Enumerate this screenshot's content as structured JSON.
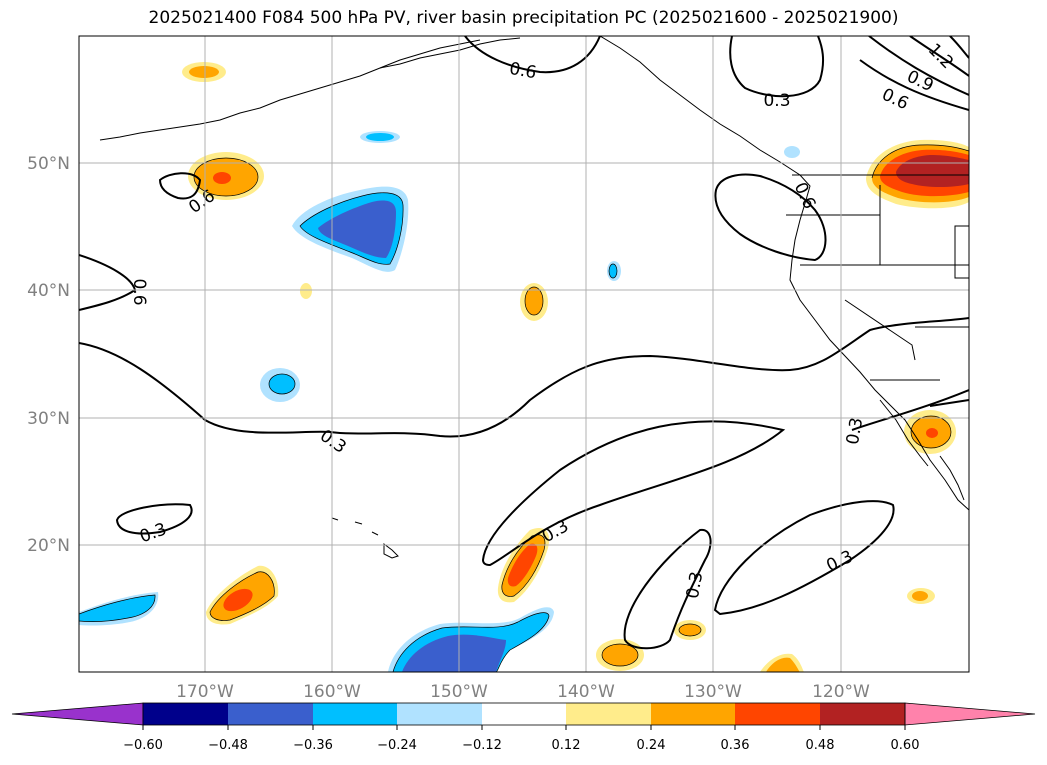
{
  "title": "2025021400 F084 500 hPa PV, river basin precipitation PC (2025021600 - 2025021900)",
  "lat_labels": [
    "50°N",
    "40°N",
    "30°N",
    "20°N"
  ],
  "lon_labels": [
    "170°W",
    "160°W",
    "150°W",
    "140°W",
    "130°W",
    "120°W"
  ],
  "contour_labels": [
    "0.6",
    "0.3",
    "0.9",
    "1.2"
  ],
  "colorbar": {
    "ticks": [
      "−0.60",
      "−0.48",
      "−0.36",
      "−0.24",
      "−0.12",
      "0.12",
      "0.24",
      "0.36",
      "0.48",
      "0.60"
    ],
    "colors": {
      "under": "#9932CC",
      "c1": "#00008B",
      "c2": "#3A5FCD",
      "c3": "#00BFFF",
      "c4": "#B0E2FF",
      "c5": "#FFFFFF",
      "c6": "#FFEC8B",
      "c7": "#FFA500",
      "c8": "#FF4500",
      "c9": "#B22222",
      "over": "#FF82AB"
    }
  }
}
